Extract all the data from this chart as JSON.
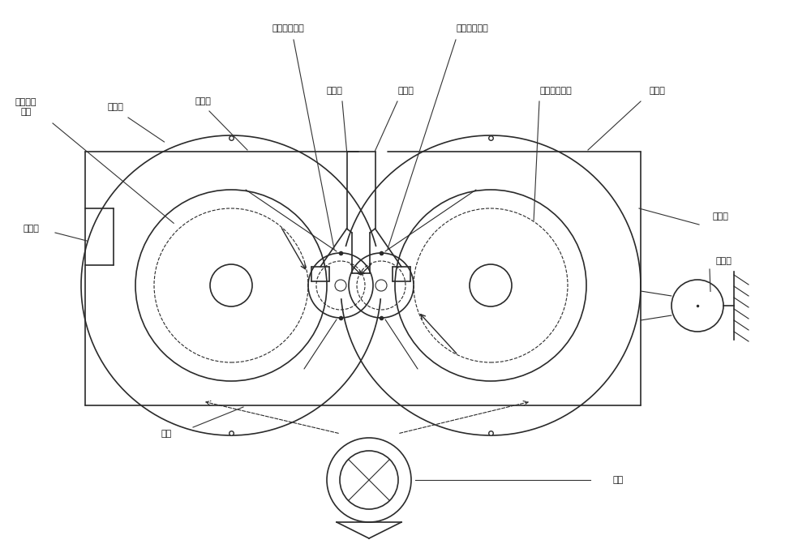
{
  "bg_color": "#ffffff",
  "line_color": "#2a2a2a",
  "figsize": [
    10.0,
    6.87
  ],
  "dpi": 100,
  "labels": {
    "left_main_roller": "左主脱粒\n辊筒",
    "threshing_basket": "脱粒筋",
    "left_pressure_plate": "左压板",
    "left_guide": "左辅脱粒辊筒",
    "right_guide": "右辅脱粒辊筒",
    "left_baffle": "左挡板",
    "right_baffle": "右挡板",
    "right_main_roller": "右主脱粒辊筒",
    "right_pressure_plate": "右压板",
    "left_side_plate": "左側板",
    "right_side_plate": "右側板",
    "fixed_pulley": "定滑轮",
    "bottom_plate": "底板",
    "motor": "电机"
  }
}
